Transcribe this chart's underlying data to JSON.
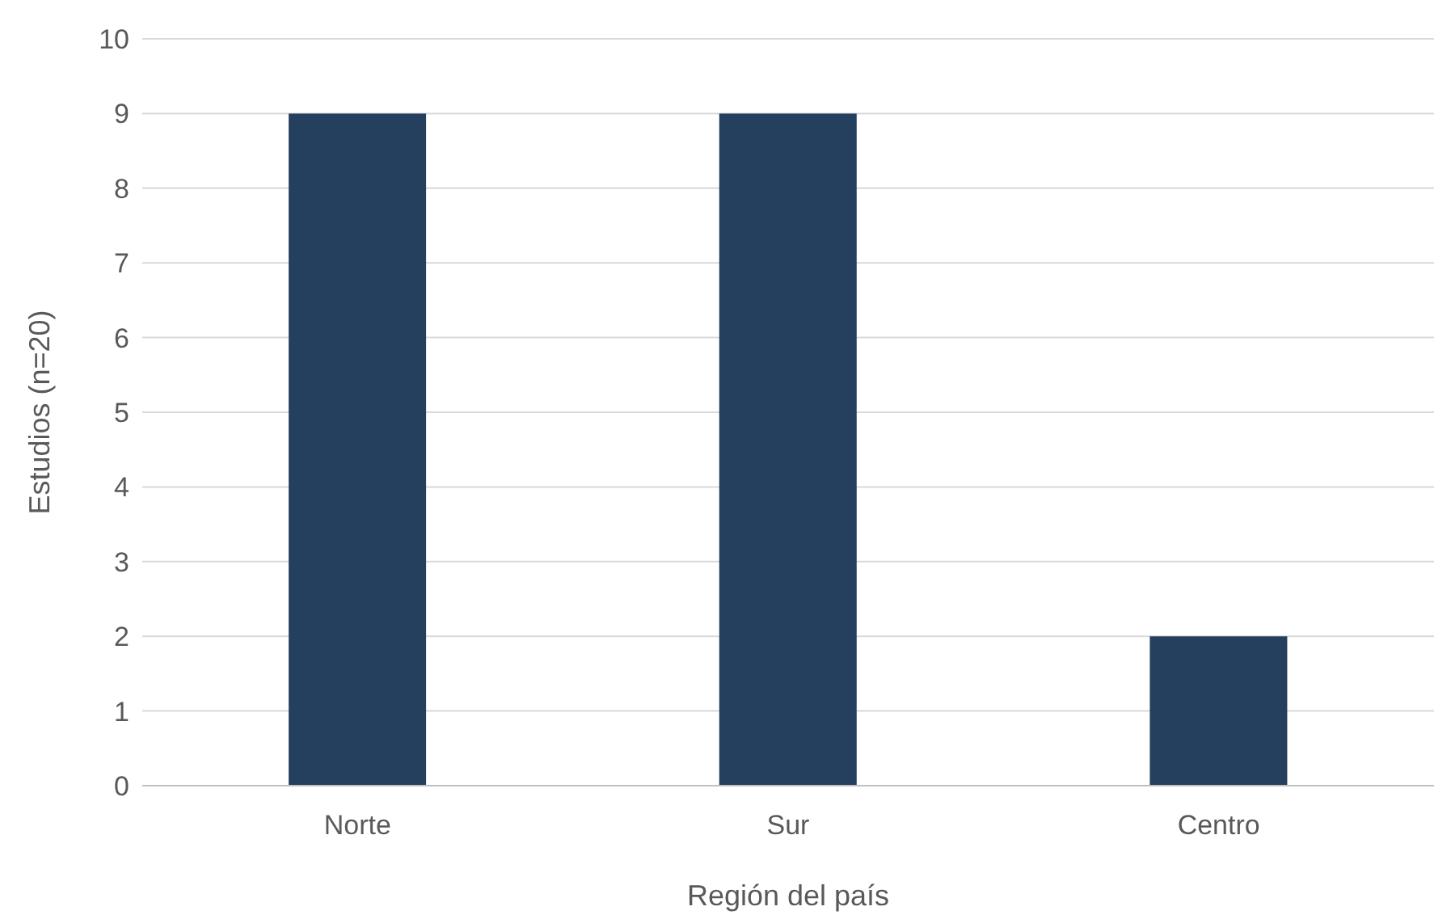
{
  "chart_data": {
    "type": "bar",
    "xlabel": "Región del país",
    "ylabel": "Estudios (n=20)",
    "categories": [
      "Norte",
      "Sur",
      "Centro"
    ],
    "values": [
      9,
      9,
      2
    ],
    "color": "#253f5f",
    "ylim": [
      0,
      10
    ],
    "yticks": [
      0,
      1,
      2,
      3,
      4,
      5,
      6,
      7,
      8,
      9,
      10
    ],
    "grid": "y"
  }
}
